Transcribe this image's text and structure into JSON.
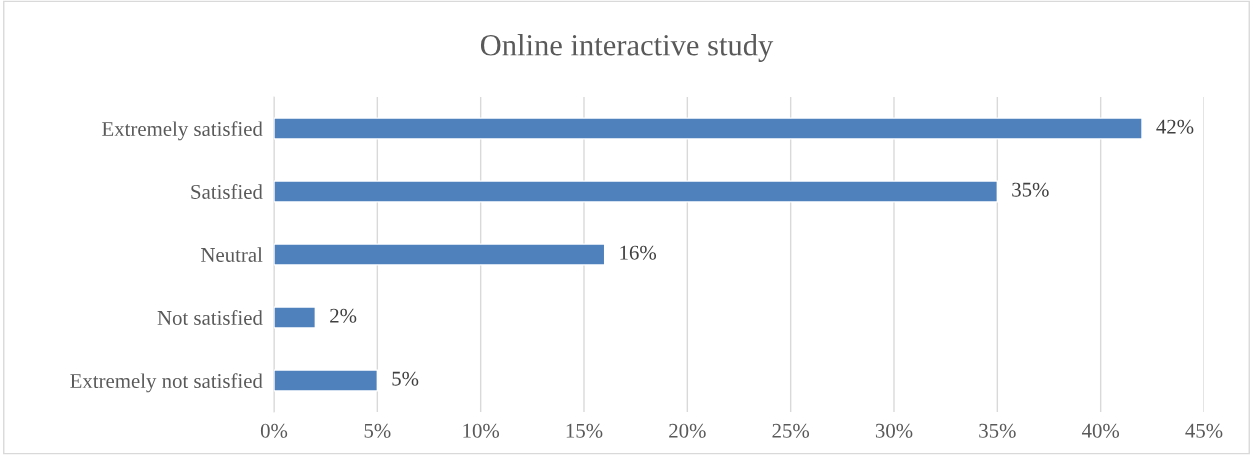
{
  "chart_data": {
    "type": "bar",
    "orientation": "horizontal",
    "title": "Online interactive study",
    "categories": [
      "Extremely satisfied",
      "Satisfied",
      "Neutral",
      "Not satisfied",
      "Extremely not satisfied"
    ],
    "values": [
      42,
      35,
      16,
      2,
      5
    ],
    "value_labels": [
      "42%",
      "35%",
      "16%",
      "2%",
      "5%"
    ],
    "color": "#4f81bd",
    "xlim": [
      0,
      45
    ],
    "xticks": [
      {
        "value": 0,
        "label": "0%"
      },
      {
        "value": 5,
        "label": "5%"
      },
      {
        "value": 10,
        "label": "10%"
      },
      {
        "value": 15,
        "label": "15%"
      },
      {
        "value": 20,
        "label": "20%"
      },
      {
        "value": 25,
        "label": "25%"
      },
      {
        "value": 30,
        "label": "30%"
      },
      {
        "value": 35,
        "label": "35%"
      },
      {
        "value": 40,
        "label": "40%"
      },
      {
        "value": 45,
        "label": "45%"
      }
    ],
    "grid": "x",
    "legend": false
  }
}
